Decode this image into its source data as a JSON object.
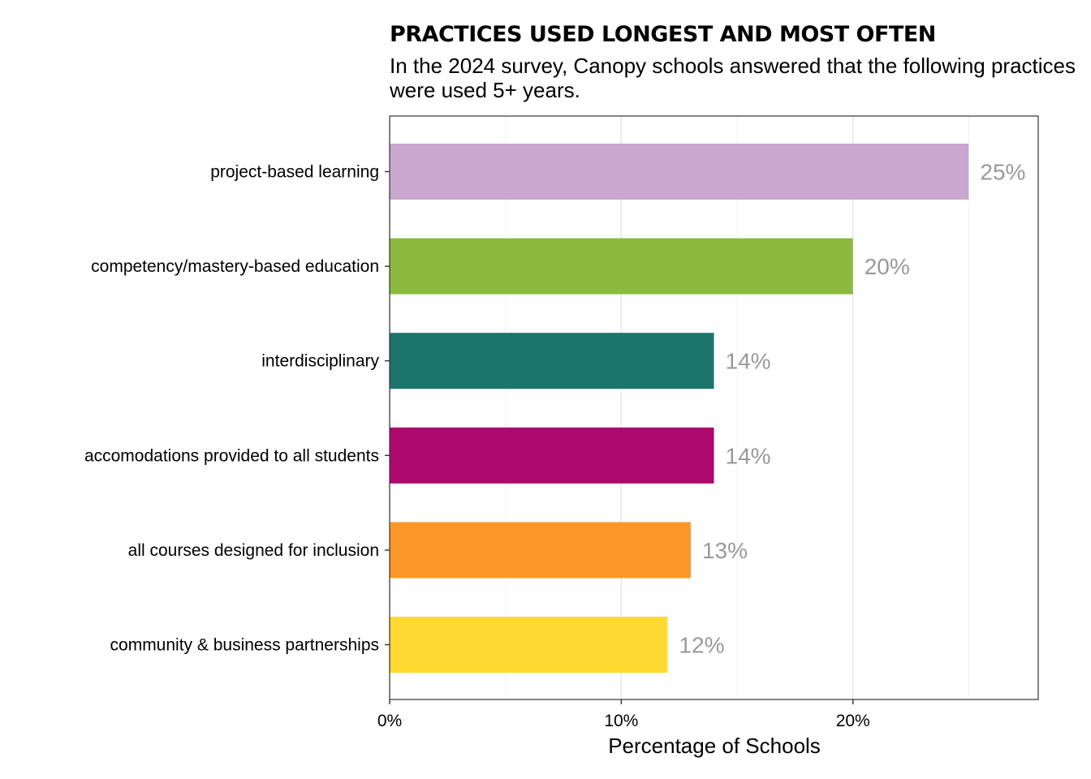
{
  "chart_data": {
    "type": "bar",
    "orientation": "horizontal",
    "title": "PRACTICES USED LONGEST AND MOST OFTEN",
    "subtitle_lines": [
      "In the 2024 survey, Canopy schools answered that the following practices",
      "were used 5+ years."
    ],
    "xlabel": "Percentage of Schools",
    "ylabel": "",
    "xlim": [
      0,
      28
    ],
    "x_ticks": [
      0,
      10,
      20
    ],
    "x_tick_labels": [
      "0%",
      "10%",
      "20%"
    ],
    "grid": true,
    "legend": "none",
    "categories": [
      "project-based learning",
      "competency/mastery-based education",
      "interdisciplinary",
      "accomodations provided to all students",
      "all courses designed for inclusion",
      "community & business partnerships"
    ],
    "values": [
      25,
      20,
      14,
      14,
      13,
      12
    ],
    "data_labels": [
      "25%",
      "20%",
      "14%",
      "14%",
      "13%",
      "12%"
    ],
    "colors": [
      "#c9a7ce",
      "#8bba3e",
      "#1d746d",
      "#ad086c",
      "#fb9728",
      "#fdd932"
    ]
  }
}
